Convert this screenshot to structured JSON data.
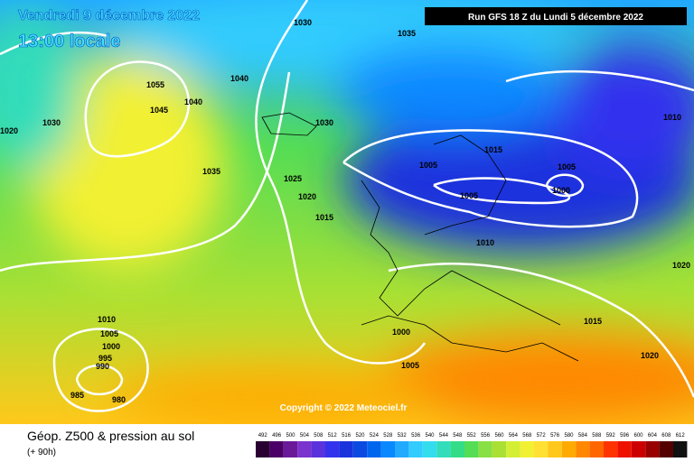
{
  "header": {
    "valid_date": "Vendredi 9 décembre 2022",
    "local_time": "13:00 locale",
    "run": "Run GFS 18 Z du Lundi 5 décembre 2022"
  },
  "isobars": [
    "1030",
    "1035",
    "1040",
    "1055",
    "1045",
    "1040",
    "1030",
    "1020",
    "1035",
    "1030",
    "1025",
    "1020",
    "1015",
    "1005",
    "1015",
    "1005",
    "1005",
    "1000",
    "1010",
    "1010",
    "1020",
    "1015",
    "1000",
    "1005",
    "1020",
    "1010",
    "1005",
    "1000",
    "995",
    "990",
    "985",
    "980"
  ],
  "copyright": "Copyright © 2022 Meteociel.fr",
  "footer": {
    "title": "Géop. Z500 & pression au sol",
    "lead": "(+ 90h)"
  },
  "scale": {
    "labels": [
      492,
      496,
      500,
      504,
      508,
      512,
      516,
      520,
      524,
      528,
      532,
      536,
      540,
      544,
      548,
      552,
      556,
      560,
      564,
      568,
      572,
      576,
      580,
      584,
      588,
      592,
      596,
      600,
      604,
      608,
      612
    ],
    "colors": [
      "#2a0033",
      "#4a0066",
      "#6a1a99",
      "#7a33cc",
      "#5a33dd",
      "#3333ee",
      "#1a33dd",
      "#0a4ae0",
      "#0066ee",
      "#0a88ff",
      "#22aaff",
      "#33ccff",
      "#33ddee",
      "#33ddbb",
      "#33dd88",
      "#55dd55",
      "#88e044",
      "#aae033",
      "#d4ee33",
      "#f2f033",
      "#ffe033",
      "#ffc81a",
      "#ffaa00",
      "#ff8800",
      "#ff6600",
      "#ff3300",
      "#ee1100",
      "#cc0000",
      "#990000",
      "#550000",
      "#111111"
    ]
  }
}
